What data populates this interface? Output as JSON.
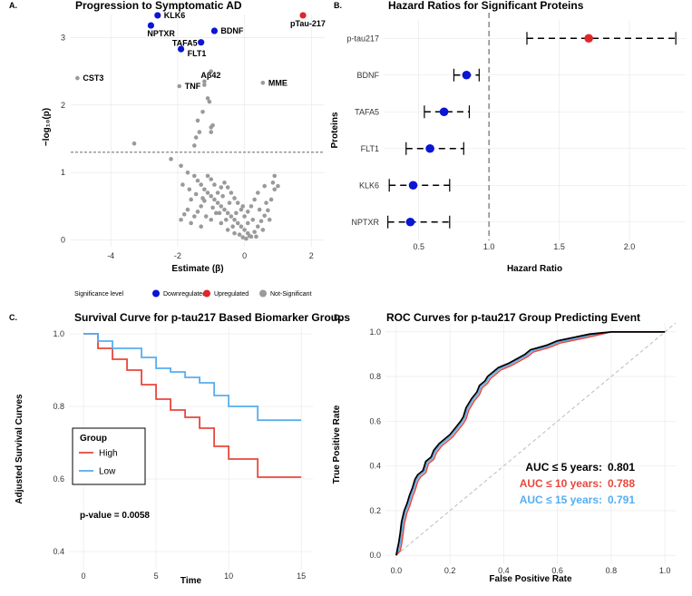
{
  "colors": {
    "down": "#0b15d4",
    "up": "#e0262a",
    "ns": "#9a9a9a",
    "high": "#e8473d",
    "low": "#55aef0",
    "black": "#000000"
  },
  "chart_data": [
    {
      "type": "scatter",
      "panel": "A.",
      "title": "Progression to Symptomatic AD",
      "xlabel": "Estimate (β)",
      "ylabel": "−log₁₀(p)",
      "xlim": [
        -5.2,
        2.4
      ],
      "ylim": [
        -0.1,
        3.45
      ],
      "xticks": [
        -4,
        -2,
        0,
        2
      ],
      "yticks": [
        0,
        1,
        2,
        3
      ],
      "threshold": 1.3,
      "labeled_points": [
        {
          "label": "KLK6",
          "x": -2.6,
          "y": 3.33,
          "group": "down"
        },
        {
          "label": "NPTXR",
          "x": -2.8,
          "y": 3.18,
          "group": "down"
        },
        {
          "label": "TAFA5",
          "x": -1.3,
          "y": 2.93,
          "group": "down"
        },
        {
          "label": "FLT1",
          "x": -1.9,
          "y": 2.83,
          "group": "down"
        },
        {
          "label": "BDNF",
          "x": -0.9,
          "y": 3.1,
          "group": "down"
        },
        {
          "label": "pTau-217",
          "x": 1.75,
          "y": 3.33,
          "group": "up"
        },
        {
          "label": "CST3",
          "x": -5.0,
          "y": 2.4,
          "group": "ns"
        },
        {
          "label": "TNF",
          "x": -1.95,
          "y": 2.28,
          "group": "ns"
        },
        {
          "label": "Aβ42",
          "x": -1.2,
          "y": 2.35,
          "group": "ns"
        },
        {
          "label": "MME",
          "x": 0.55,
          "y": 2.33,
          "group": "ns"
        }
      ],
      "ns_points": [
        [
          -3.3,
          1.43
        ],
        [
          -1.5,
          1.4
        ],
        [
          -1.0,
          1.67
        ],
        [
          -0.95,
          1.7
        ],
        [
          -1.1,
          2.1
        ],
        [
          -1.2,
          2.3
        ],
        [
          -1.25,
          1.9
        ],
        [
          -1.4,
          1.77
        ],
        [
          -1.35,
          1.6
        ],
        [
          -1.45,
          1.52
        ],
        [
          -1.05,
          2.05
        ],
        [
          -1.0,
          2.5
        ],
        [
          -1.0,
          1.6
        ],
        [
          -2.2,
          1.2
        ],
        [
          -1.9,
          1.1
        ],
        [
          -1.7,
          1.0
        ],
        [
          -1.5,
          0.95
        ],
        [
          -1.4,
          0.88
        ],
        [
          -1.3,
          0.82
        ],
        [
          -1.2,
          0.75
        ],
        [
          -1.1,
          0.7
        ],
        [
          -1.0,
          0.65
        ],
        [
          -0.9,
          0.6
        ],
        [
          -0.8,
          0.55
        ],
        [
          -0.7,
          0.5
        ],
        [
          -0.6,
          0.45
        ],
        [
          -0.5,
          0.4
        ],
        [
          -0.4,
          0.35
        ],
        [
          -0.3,
          0.3
        ],
        [
          -0.2,
          0.25
        ],
        [
          -0.1,
          0.2
        ],
        [
          0.0,
          0.15
        ],
        [
          0.1,
          0.1
        ],
        [
          0.2,
          0.05
        ],
        [
          -0.15,
          0.08
        ],
        [
          -0.05,
          0.04
        ],
        [
          0.05,
          0.02
        ],
        [
          0.15,
          0.06
        ],
        [
          0.3,
          0.12
        ],
        [
          0.4,
          0.2
        ],
        [
          0.5,
          0.28
        ],
        [
          0.6,
          0.36
        ],
        [
          0.7,
          0.44
        ],
        [
          0.8,
          0.6
        ],
        [
          0.9,
          0.75
        ],
        [
          1.0,
          0.8
        ],
        [
          0.9,
          0.95
        ],
        [
          0.85,
          0.85
        ],
        [
          0.6,
          0.8
        ],
        [
          0.4,
          0.7
        ],
        [
          0.3,
          0.6
        ],
        [
          0.2,
          0.5
        ],
        [
          0.1,
          0.42
        ],
        [
          0.0,
          0.35
        ],
        [
          -0.1,
          0.45
        ],
        [
          -0.2,
          0.55
        ],
        [
          -0.3,
          0.62
        ],
        [
          -0.4,
          0.7
        ],
        [
          -0.5,
          0.78
        ],
        [
          -0.6,
          0.85
        ],
        [
          -0.7,
          0.78
        ],
        [
          -0.8,
          0.7
        ],
        [
          -0.9,
          0.82
        ],
        [
          -1.0,
          0.9
        ],
        [
          -1.1,
          0.95
        ],
        [
          -1.2,
          0.58
        ],
        [
          -1.3,
          0.5
        ],
        [
          -1.4,
          0.42
        ],
        [
          -1.5,
          0.35
        ],
        [
          -1.6,
          0.6
        ],
        [
          -1.7,
          0.45
        ],
        [
          -1.8,
          0.38
        ],
        [
          -1.9,
          0.3
        ],
        [
          -1.6,
          0.25
        ],
        [
          -1.3,
          0.2
        ],
        [
          -1.0,
          0.3
        ],
        [
          -0.7,
          0.25
        ],
        [
          -0.5,
          0.15
        ],
        [
          -0.3,
          0.1
        ],
        [
          -0.25,
          0.4
        ],
        [
          -0.45,
          0.55
        ],
        [
          -0.65,
          0.65
        ],
        [
          -0.85,
          0.4
        ],
        [
          -1.15,
          0.35
        ],
        [
          0.25,
          0.3
        ],
        [
          0.45,
          0.45
        ],
        [
          0.65,
          0.55
        ],
        [
          0.75,
          0.3
        ],
        [
          0.55,
          0.15
        ],
        [
          0.35,
          0.05
        ],
        [
          0.1,
          0.25
        ],
        [
          -0.05,
          0.5
        ],
        [
          -0.35,
          0.2
        ],
        [
          -0.55,
          0.3
        ],
        [
          -0.75,
          0.4
        ],
        [
          -0.95,
          0.48
        ],
        [
          -1.25,
          0.62
        ],
        [
          -1.45,
          0.68
        ],
        [
          -1.65,
          0.75
        ],
        [
          -1.85,
          0.82
        ]
      ],
      "legend": {
        "title": "Significance level",
        "items": [
          {
            "label": "Downregulated",
            "key": "down"
          },
          {
            "label": "Upregulated",
            "key": "up"
          },
          {
            "label": "Not-Significant",
            "key": "ns"
          }
        ]
      }
    },
    {
      "type": "forest",
      "panel": "B.",
      "title": "Hazard Ratios for Significant Proteins",
      "xlabel": "Hazard Ratio",
      "ylabel": "Proteins",
      "xlim": [
        0.25,
        2.4
      ],
      "xticks": [
        0.5,
        1.0,
        1.5,
        2.0
      ],
      "xtick_labels": [
        "0.5",
        "1.0",
        "1.5",
        "2.0"
      ],
      "reference": 1.0,
      "rows": [
        {
          "label": "p-tau217",
          "hr": 1.71,
          "lo": 1.27,
          "hi": 2.33,
          "group": "up"
        },
        {
          "label": "BDNF",
          "hr": 0.84,
          "lo": 0.75,
          "hi": 0.93,
          "group": "down"
        },
        {
          "label": "TAFA5",
          "hr": 0.68,
          "lo": 0.54,
          "hi": 0.86,
          "group": "down"
        },
        {
          "label": "FLT1",
          "hr": 0.58,
          "lo": 0.41,
          "hi": 0.82,
          "group": "down"
        },
        {
          "label": "KLK6",
          "hr": 0.46,
          "lo": 0.29,
          "hi": 0.72,
          "group": "down"
        },
        {
          "label": "NPTXR",
          "hr": 0.44,
          "lo": 0.28,
          "hi": 0.72,
          "group": "down"
        }
      ]
    },
    {
      "type": "line",
      "panel": "C.",
      "title": "Survival Curve for p-tau217 Based Biomarker Groups",
      "xlabel": "Time",
      "ylabel": "Adjusted Survival Curves",
      "xlim": [
        -1,
        15.8
      ],
      "ylim": [
        0.35,
        1.04
      ],
      "xticks": [
        0,
        5,
        10,
        15
      ],
      "yticks": [
        0.4,
        0.6,
        0.8,
        1.0
      ],
      "ytick_labels": [
        "0.4",
        "0.6",
        "0.8",
        "1.0"
      ],
      "series": [
        {
          "name": "High",
          "color": "#e8473d",
          "steps": [
            [
              0,
              1.0
            ],
            [
              1,
              0.96
            ],
            [
              2,
              0.93
            ],
            [
              3,
              0.9
            ],
            [
              4,
              0.86
            ],
            [
              5,
              0.82
            ],
            [
              6,
              0.79
            ],
            [
              7,
              0.77
            ],
            [
              8,
              0.74
            ],
            [
              9,
              0.69
            ],
            [
              10,
              0.655
            ],
            [
              12,
              0.605
            ],
            [
              15,
              0.605
            ]
          ]
        },
        {
          "name": "Low",
          "color": "#55aef0",
          "steps": [
            [
              0,
              1.0
            ],
            [
              1,
              0.98
            ],
            [
              2,
              0.96
            ],
            [
              4,
              0.935
            ],
            [
              5,
              0.905
            ],
            [
              6,
              0.895
            ],
            [
              7,
              0.88
            ],
            [
              8,
              0.865
            ],
            [
              9,
              0.83
            ],
            [
              10,
              0.8
            ],
            [
              12,
              0.762
            ],
            [
              15,
              0.762
            ]
          ]
        }
      ],
      "legend_title": "Group",
      "annotation": "p-value = 0.0058"
    },
    {
      "type": "line",
      "panel": "D.",
      "title": "ROC Curves for p-tau217 Group Predicting Event",
      "xlabel": "False Positive Rate",
      "ylabel": "True Positive Rate",
      "xlim": [
        -0.04,
        1.04
      ],
      "ylim": [
        -0.04,
        1.04
      ],
      "xticks": [
        0,
        0.2,
        0.4,
        0.6,
        0.8,
        1
      ],
      "xtick_labels": [
        "0.0",
        "0.2",
        "0.4",
        "0.6",
        "0.8",
        "1.0"
      ],
      "yticks": [
        0,
        0.2,
        0.4,
        0.6,
        0.8,
        1
      ],
      "ytick_labels": [
        "0.0",
        "0.2",
        "0.4",
        "0.6",
        "0.8",
        "1.0"
      ],
      "roc": [
        [
          0,
          0
        ],
        [
          0.005,
          0.03
        ],
        [
          0.01,
          0.06
        ],
        [
          0.015,
          0.1
        ],
        [
          0.02,
          0.15
        ],
        [
          0.03,
          0.2
        ],
        [
          0.04,
          0.23
        ],
        [
          0.05,
          0.27
        ],
        [
          0.06,
          0.3
        ],
        [
          0.07,
          0.34
        ],
        [
          0.08,
          0.36
        ],
        [
          0.1,
          0.38
        ],
        [
          0.11,
          0.42
        ],
        [
          0.13,
          0.44
        ],
        [
          0.14,
          0.47
        ],
        [
          0.16,
          0.5
        ],
        [
          0.18,
          0.52
        ],
        [
          0.2,
          0.54
        ],
        [
          0.22,
          0.57
        ],
        [
          0.24,
          0.6
        ],
        [
          0.25,
          0.62
        ],
        [
          0.26,
          0.66
        ],
        [
          0.28,
          0.7
        ],
        [
          0.3,
          0.73
        ],
        [
          0.31,
          0.76
        ],
        [
          0.33,
          0.78
        ],
        [
          0.34,
          0.8
        ],
        [
          0.36,
          0.82
        ],
        [
          0.38,
          0.84
        ],
        [
          0.4,
          0.85
        ],
        [
          0.42,
          0.86
        ],
        [
          0.45,
          0.88
        ],
        [
          0.48,
          0.9
        ],
        [
          0.5,
          0.92
        ],
        [
          0.53,
          0.93
        ],
        [
          0.56,
          0.94
        ],
        [
          0.6,
          0.96
        ],
        [
          0.64,
          0.97
        ],
        [
          0.68,
          0.98
        ],
        [
          0.72,
          0.99
        ],
        [
          0.8,
          1.0
        ],
        [
          1.0,
          1.0
        ]
      ],
      "series": [
        {
          "name": "AUC ≤ 5 years:",
          "auc": "0.801",
          "color": "#000000"
        },
        {
          "name": "AUC ≤ 10 years:",
          "auc": "0.788",
          "color": "#e8473d"
        },
        {
          "name": "AUC ≤ 15 years:",
          "auc": "0.791",
          "color": "#55aef0"
        }
      ]
    }
  ]
}
